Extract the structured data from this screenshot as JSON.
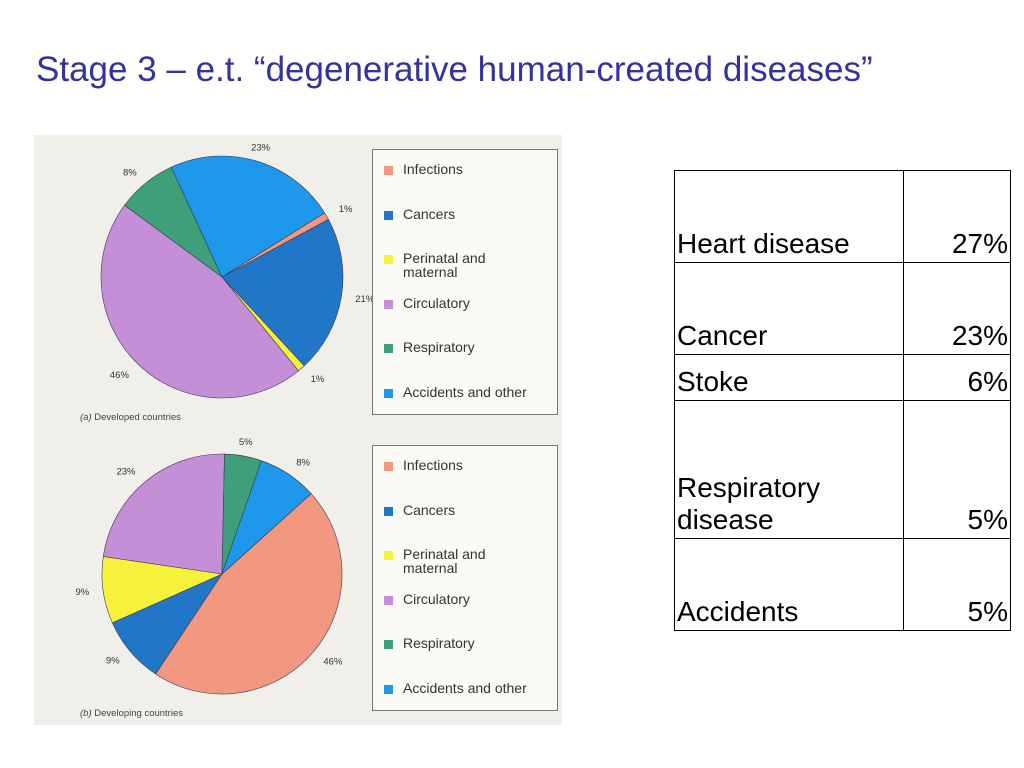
{
  "title": "Stage 3 – e.t. “degenerative human-created diseases”",
  "colors": {
    "title": "#3333a0",
    "infections": "#f29880",
    "cancers": "#2176c8",
    "perinatal": "#f6f23c",
    "circulatory": "#c58fd8",
    "respiratory": "#3e9f7a",
    "accidents": "#1e98ea"
  },
  "chart_data": [
    {
      "type": "pie",
      "caption_letter": "(a)",
      "caption_text": "Developed countries",
      "start_angle_deg": 58,
      "legend": [
        {
          "label": "Infections",
          "key": "infections"
        },
        {
          "label": "Cancers",
          "key": "cancers"
        },
        {
          "label": "Perinatal and\nmaternal",
          "key": "perinatal"
        },
        {
          "label": "Circulatory",
          "key": "circulatory"
        },
        {
          "label": "Respiratory",
          "key": "respiratory"
        },
        {
          "label": "Accidents and other",
          "key": "accidents"
        }
      ],
      "slices": [
        {
          "key": "infections",
          "value": 1,
          "label": "1%"
        },
        {
          "key": "cancers",
          "value": 21,
          "label": "21%"
        },
        {
          "key": "perinatal",
          "value": 1,
          "label": "1%"
        },
        {
          "key": "circulatory",
          "value": 46,
          "label": "46%"
        },
        {
          "key": "respiratory",
          "value": 8,
          "label": "8%"
        },
        {
          "key": "accidents",
          "value": 23,
          "label": "23%"
        }
      ]
    },
    {
      "type": "pie",
      "caption_letter": "(b)",
      "caption_text": "Developing countries",
      "start_angle_deg": 48,
      "legend": [
        {
          "label": "Infections",
          "key": "infections"
        },
        {
          "label": "Cancers",
          "key": "cancers"
        },
        {
          "label": "Perinatal and\nmaternal",
          "key": "perinatal"
        },
        {
          "label": "Circulatory",
          "key": "circulatory"
        },
        {
          "label": "Respiratory",
          "key": "respiratory"
        },
        {
          "label": "Accidents and other",
          "key": "accidents"
        }
      ],
      "slices": [
        {
          "key": "infections",
          "value": 46,
          "label": "46%"
        },
        {
          "key": "cancers",
          "value": 9,
          "label": "9%"
        },
        {
          "key": "perinatal",
          "value": 9,
          "label": "9%"
        },
        {
          "key": "circulatory",
          "value": 23,
          "label": "23%"
        },
        {
          "key": "respiratory",
          "value": 5,
          "label": "5%"
        },
        {
          "key": "accidents",
          "value": 8,
          "label": "8%"
        }
      ]
    }
  ],
  "table": {
    "rows": [
      {
        "name": "Heart disease",
        "value": "27%"
      },
      {
        "name": "Cancer",
        "value": "23%"
      },
      {
        "name": "Stoke",
        "value": "6%"
      },
      {
        "name": "Respiratory\ndisease",
        "value": "5%"
      },
      {
        "name": "Accidents",
        "value": "5%"
      }
    ]
  }
}
